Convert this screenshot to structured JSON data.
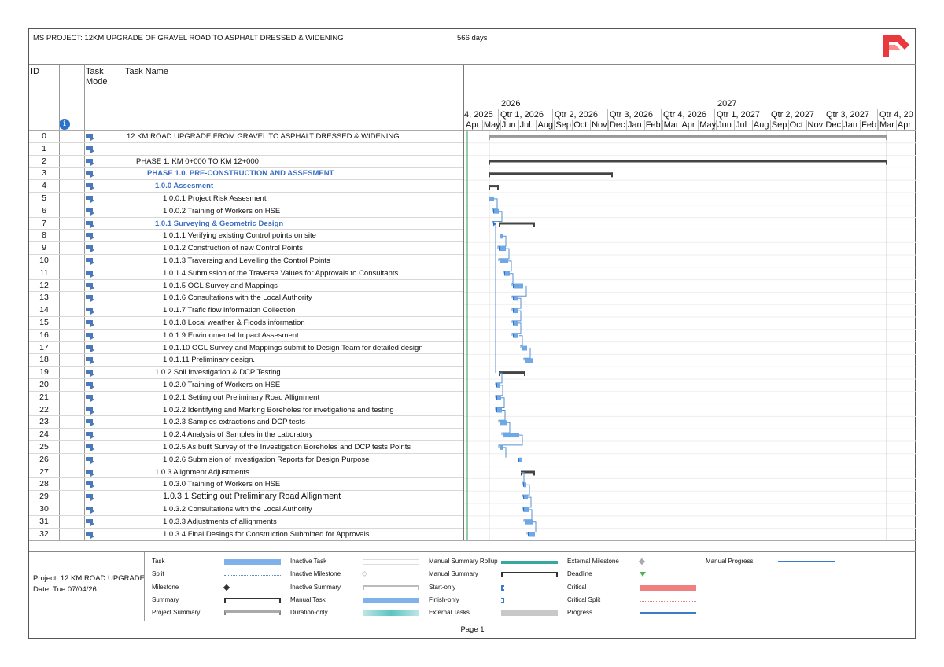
{
  "header": {
    "title": "MS PROJECT: 12KM UPGRADE OF GRAVEL ROAD TO ASPHALT DRESSED & WIDENING",
    "duration": "566 days",
    "logo_icon": "app-logo-icon"
  },
  "columns": {
    "id": "ID",
    "task_mode": "Task\nMode",
    "task_mode_line1": "Task",
    "task_mode_line2": "Mode",
    "task_name": "Task Name",
    "info_icon": "i"
  },
  "timeline": {
    "years": [
      "2026",
      "2027"
    ],
    "quarters": [
      "4, 2025",
      "Qtr 1, 2026",
      "Qtr 2, 2026",
      "Qtr 3, 2026",
      "Qtr 4, 2026",
      "Qtr 1, 2027",
      "Qtr 2, 2027",
      "Qtr 3, 2027",
      "Qtr 4, 20"
    ],
    "months": [
      "Apr",
      "May",
      "Jun",
      "Jul",
      "Aug",
      "Sep",
      "Oct",
      "Nov",
      "Dec",
      "Jan",
      "Feb",
      "Mar",
      "Apr",
      "May",
      "Jun",
      "Jul",
      "Aug",
      "Sep",
      "Oct",
      "Nov",
      "Dec",
      "Jan",
      "Feb",
      "Mar",
      "Apr"
    ]
  },
  "tasks": [
    {
      "id": "0",
      "name": "12 KM ROAD UPGRADE FROM GRAVEL TO ASPHALT DRESSED & WIDENING",
      "indent": 0,
      "style": "normal"
    },
    {
      "id": "1",
      "name": "",
      "indent": 0,
      "style": "normal"
    },
    {
      "id": "2",
      "name": "PHASE 1: KM 0+000 TO KM 12+000",
      "indent": 1,
      "style": "normal"
    },
    {
      "id": "3",
      "name": "PHASE 1.0. PRE-CONSTRUCTION AND ASSESMENT",
      "indent": 2,
      "style": "phase"
    },
    {
      "id": "4",
      "name": "1.0.0 Assesment",
      "indent": 3,
      "style": "phase"
    },
    {
      "id": "5",
      "name": "1.0.0.1 Project Risk Assesment",
      "indent": 4,
      "style": "normal"
    },
    {
      "id": "6",
      "name": "1.0.0.2 Training of Workers on HSE",
      "indent": 4,
      "style": "normal"
    },
    {
      "id": "7",
      "name": "1.0.1 Surveying & Geometric Design",
      "indent": 3,
      "style": "phase"
    },
    {
      "id": "8",
      "name": "1.0.1.1 Verifying existing Control points on site",
      "indent": 4,
      "style": "normal"
    },
    {
      "id": "9",
      "name": "1.0.1.2 Construction of new Control Points",
      "indent": 4,
      "style": "normal"
    },
    {
      "id": "10",
      "name": "1.0.1.3 Traversing and Levelling the Control Points",
      "indent": 4,
      "style": "normal"
    },
    {
      "id": "11",
      "name": "1.0.1.4 Submission of the Traverse Values for Approvals to Consultants",
      "indent": 4,
      "style": "normal"
    },
    {
      "id": "12",
      "name": "1.0.1.5 OGL Survey and Mappings",
      "indent": 4,
      "style": "normal"
    },
    {
      "id": "13",
      "name": "1.0.1.6 Consultations with the Local Authority",
      "indent": 4,
      "style": "normal"
    },
    {
      "id": "14",
      "name": "1.0.1.7 Trafic flow information Collection",
      "indent": 4,
      "style": "normal"
    },
    {
      "id": "15",
      "name": "1.0.1.8 Local weather & Floods information",
      "indent": 4,
      "style": "normal"
    },
    {
      "id": "16",
      "name": "1.0.1.9 Environmental Impact Assesment",
      "indent": 4,
      "style": "normal"
    },
    {
      "id": "17",
      "name": "1.0.1.10 OGL Survey and Mappings submit to Design Team for detailed design",
      "indent": 4,
      "style": "normal"
    },
    {
      "id": "18",
      "name": "1.0.1.11 Preliminary design.",
      "indent": 4,
      "style": "normal"
    },
    {
      "id": "19",
      "name": "1.0.2 Soil Investigation & DCP Testing",
      "indent": 3,
      "style": "normal"
    },
    {
      "id": "20",
      "name": "1.0.2.0 Training of Workers on HSE",
      "indent": 4,
      "style": "normal"
    },
    {
      "id": "21",
      "name": "1.0.2.1 Setting out Preliminary Road Allignment",
      "indent": 4,
      "style": "normal"
    },
    {
      "id": "22",
      "name": "1.0.2.2 Identifying and Marking Boreholes for invetigations and testing",
      "indent": 4,
      "style": "normal"
    },
    {
      "id": "23",
      "name": "1.0.2.3 Samples extractions and DCP tests",
      "indent": 4,
      "style": "normal"
    },
    {
      "id": "24",
      "name": "1.0.2.4 Analysis of Samples in the Laboratory",
      "indent": 4,
      "style": "normal"
    },
    {
      "id": "25",
      "name": "1.0.2.5 As built Survey of the Investigation Boreholes and DCP tests Points",
      "indent": 4,
      "style": "normal"
    },
    {
      "id": "26",
      "name": "1.0.2.6 Submision of Investigation Reports for Design Purpose",
      "indent": 4,
      "style": "normal"
    },
    {
      "id": "27",
      "name": "1.0.3 Alignment Adjustments",
      "indent": 3,
      "style": "normal"
    },
    {
      "id": "28",
      "name": "1.0.3.0 Training of Workers on HSE",
      "indent": 4,
      "style": "normal"
    },
    {
      "id": "29",
      "name": "1.0.3.1 Setting out Preliminary Road Allignment",
      "indent": 4,
      "style": "large"
    },
    {
      "id": "30",
      "name": "1.0.3.2 Consultations with the Local Authority",
      "indent": 4,
      "style": "normal"
    },
    {
      "id": "31",
      "name": "1.0.3.3 Adjustments of allignments",
      "indent": 4,
      "style": "normal"
    },
    {
      "id": "32",
      "name": "1.0.3.4 Final Desings for Construction Submitted for Approvals",
      "indent": 4,
      "style": "normal"
    }
  ],
  "legend": {
    "project": "Project: 12 KM ROAD UPGRADE",
    "date": "Date: Tue 07/04/26",
    "items": [
      [
        "Task",
        "Inactive Task",
        "Manual Summary Rollup",
        "External Milestone",
        "Manual Progress"
      ],
      [
        "Split",
        "Inactive Milestone",
        "Manual Summary",
        "Deadline",
        ""
      ],
      [
        "Milestone",
        "Inactive Summary",
        "Start-only",
        "Critical",
        ""
      ],
      [
        "Summary",
        "Manual Task",
        "Finish-only",
        "Critical Split",
        ""
      ],
      [
        "Project Summary",
        "Duration-only",
        "External Tasks",
        "Progress",
        ""
      ]
    ]
  },
  "footer": {
    "page": "Page 1"
  },
  "colors": {
    "task_bar": "#6fa8e6",
    "summary_bar": "#333333",
    "phase_text": "#3a6fbf",
    "critical": "#f08080",
    "manual_summary_rollup": "#3aa6a0",
    "logo": "#e8393f"
  }
}
